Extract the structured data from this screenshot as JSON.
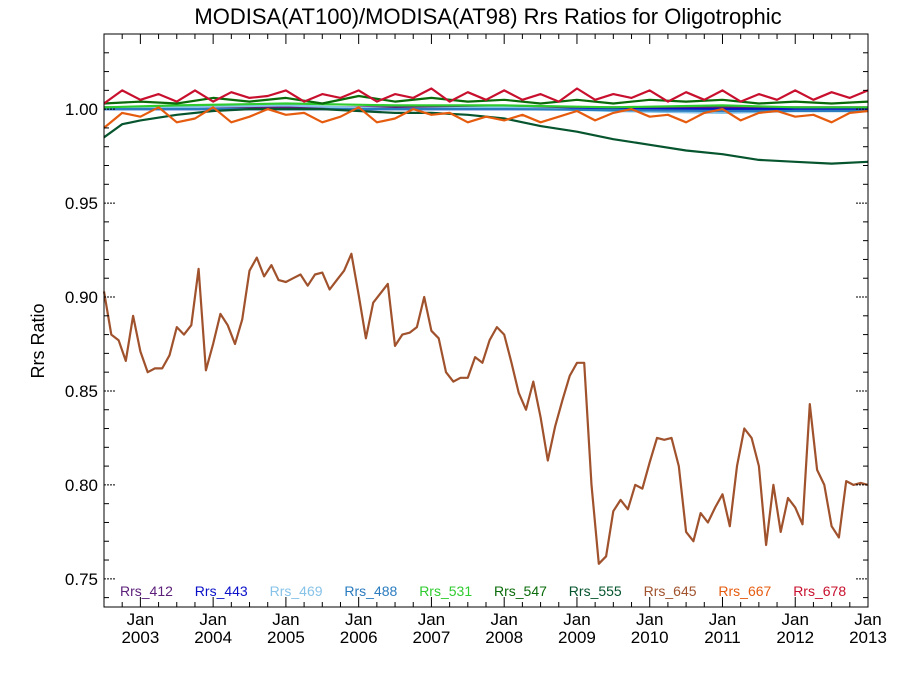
{
  "chart_data": {
    "type": "line",
    "title": "MODISA(AT100)/MODISA(AT98)  Rrs Ratios for Oligotrophic",
    "ylabel": "Rrs Ratio",
    "xlabel": "",
    "ylim": [
      0.735,
      1.04
    ],
    "yticks": [
      "0.75",
      "0.80",
      "0.85",
      "0.90",
      "0.95",
      "1.00"
    ],
    "ytick_values": [
      0.75,
      0.8,
      0.85,
      0.9,
      0.95,
      1.0
    ],
    "x_range": [
      2002.5,
      2013.0
    ],
    "xticks": [
      {
        "month": "Jan",
        "year": "2003",
        "x": 2003.0
      },
      {
        "month": "Jan",
        "year": "2004",
        "x": 2004.0
      },
      {
        "month": "Jan",
        "year": "2005",
        "x": 2005.0
      },
      {
        "month": "Jan",
        "year": "2006",
        "x": 2006.0
      },
      {
        "month": "Jan",
        "year": "2007",
        "x": 2007.0
      },
      {
        "month": "Jan",
        "year": "2008",
        "x": 2008.0
      },
      {
        "month": "Jan",
        "year": "2009",
        "x": 2009.0
      },
      {
        "month": "Jan",
        "year": "2010",
        "x": 2010.0
      },
      {
        "month": "Jan",
        "year": "2011",
        "x": 2011.0
      },
      {
        "month": "Jan",
        "year": "2012",
        "x": 2012.0
      },
      {
        "month": "Jan",
        "year": "2013",
        "x": 2013.0
      }
    ],
    "grid": false,
    "legend_placement": "bottom",
    "series": [
      {
        "name": "Rrs_412",
        "color": "#5b1f7a",
        "x": [
          2002.5,
          2005.0,
          2008.0,
          2011.0,
          2013.0
        ],
        "values": [
          1.001,
          1.001,
          1.001,
          1.001,
          1.001
        ]
      },
      {
        "name": "Rrs_443",
        "color": "#0a10c8",
        "x": [
          2002.5,
          2005.0,
          2008.0,
          2011.0,
          2013.0
        ],
        "values": [
          1.0,
          1.0,
          1.0,
          1.0,
          1.0
        ]
      },
      {
        "name": "Rrs_469",
        "color": "#87c3e8",
        "x": [
          2002.5,
          2003.5,
          2005.0,
          2006.5,
          2008.0,
          2009.5,
          2011.0,
          2012.0,
          2013.0
        ],
        "values": [
          1.0,
          1.001,
          1.002,
          1.0,
          1.001,
          0.999,
          0.998,
          0.999,
          0.999
        ]
      },
      {
        "name": "Rrs_488",
        "color": "#2a7cbf",
        "x": [
          2002.5,
          2005.0,
          2008.0,
          2011.0,
          2013.0
        ],
        "values": [
          1.0,
          1.0,
          1.0,
          0.999,
          0.999
        ]
      },
      {
        "name": "Rrs_531",
        "color": "#2fcc2f",
        "x": [
          2002.5,
          2003.5,
          2005.0,
          2006.5,
          2008.0,
          2009.5,
          2011.0,
          2012.0,
          2013.0
        ],
        "values": [
          1.001,
          1.002,
          1.003,
          1.002,
          1.002,
          1.001,
          1.002,
          1.001,
          1.001
        ]
      },
      {
        "name": "Rrs_547",
        "color": "#0a6b0a",
        "x": [
          2002.5,
          2003.0,
          2003.5,
          2004.0,
          2004.5,
          2005.0,
          2005.5,
          2006.0,
          2006.5,
          2007.0,
          2007.5,
          2008.0,
          2008.5,
          2009.0,
          2009.5,
          2010.0,
          2010.5,
          2011.0,
          2011.5,
          2012.0,
          2012.5,
          2013.0
        ],
        "values": [
          1.003,
          1.004,
          1.003,
          1.006,
          1.004,
          1.006,
          1.003,
          1.007,
          1.004,
          1.006,
          1.004,
          1.005,
          1.003,
          1.005,
          1.003,
          1.005,
          1.004,
          1.005,
          1.003,
          1.004,
          1.003,
          1.004
        ]
      },
      {
        "name": "Rrs_555",
        "color": "#06552e",
        "x": [
          2002.5,
          2002.75,
          2003.0,
          2003.5,
          2004.0,
          2004.5,
          2005.0,
          2005.5,
          2006.0,
          2006.5,
          2007.0,
          2007.5,
          2008.0,
          2008.5,
          2009.0,
          2009.5,
          2010.0,
          2010.5,
          2011.0,
          2011.5,
          2012.0,
          2012.5,
          2013.0
        ],
        "values": [
          0.985,
          0.992,
          0.994,
          0.997,
          0.999,
          1.0,
          1.0,
          1.0,
          0.999,
          0.998,
          0.998,
          0.997,
          0.995,
          0.991,
          0.988,
          0.984,
          0.981,
          0.978,
          0.976,
          0.973,
          0.972,
          0.971,
          0.972
        ]
      },
      {
        "name": "Rrs_645",
        "color": "#a0522d",
        "x": [
          2002.5,
          2002.6,
          2002.7,
          2002.8,
          2002.9,
          2003.0,
          2003.1,
          2003.2,
          2003.3,
          2003.4,
          2003.5,
          2003.6,
          2003.7,
          2003.8,
          2003.9,
          2004.0,
          2004.1,
          2004.2,
          2004.3,
          2004.4,
          2004.5,
          2004.6,
          2004.7,
          2004.8,
          2004.9,
          2005.0,
          2005.1,
          2005.2,
          2005.3,
          2005.4,
          2005.5,
          2005.6,
          2005.7,
          2005.8,
          2005.9,
          2006.0,
          2006.1,
          2006.2,
          2006.3,
          2006.4,
          2006.5,
          2006.6,
          2006.7,
          2006.8,
          2006.9,
          2007.0,
          2007.1,
          2007.2,
          2007.3,
          2007.4,
          2007.5,
          2007.6,
          2007.7,
          2007.8,
          2007.9,
          2008.0,
          2008.1,
          2008.2,
          2008.3,
          2008.4,
          2008.5,
          2008.6,
          2008.7,
          2008.8,
          2008.9,
          2009.0,
          2009.1,
          2009.2,
          2009.3,
          2009.4,
          2009.5,
          2009.6,
          2009.7,
          2009.8,
          2009.9,
          2010.0,
          2010.1,
          2010.2,
          2010.3,
          2010.4,
          2010.5,
          2010.6,
          2010.7,
          2010.8,
          2010.9,
          2011.0,
          2011.1,
          2011.2,
          2011.3,
          2011.4,
          2011.5,
          2011.6,
          2011.7,
          2011.8,
          2011.9,
          2012.0,
          2012.1,
          2012.2,
          2012.3,
          2012.4,
          2012.5,
          2012.6,
          2012.7,
          2012.8,
          2012.9,
          2013.0
        ],
        "values": [
          0.903,
          0.88,
          0.877,
          0.866,
          0.89,
          0.871,
          0.86,
          0.862,
          0.862,
          0.869,
          0.884,
          0.88,
          0.885,
          0.915,
          0.861,
          0.875,
          0.891,
          0.885,
          0.875,
          0.888,
          0.914,
          0.921,
          0.911,
          0.917,
          0.909,
          0.908,
          0.91,
          0.912,
          0.906,
          0.912,
          0.913,
          0.904,
          0.909,
          0.914,
          0.923,
          0.901,
          0.878,
          0.897,
          0.902,
          0.907,
          0.874,
          0.88,
          0.881,
          0.884,
          0.9,
          0.882,
          0.878,
          0.86,
          0.855,
          0.857,
          0.857,
          0.868,
          0.865,
          0.877,
          0.884,
          0.88,
          0.865,
          0.849,
          0.84,
          0.855,
          0.836,
          0.813,
          0.831,
          0.845,
          0.858,
          0.865,
          0.865,
          0.8,
          0.758,
          0.762,
          0.786,
          0.792,
          0.787,
          0.8,
          0.798,
          0.812,
          0.825,
          0.824,
          0.825,
          0.81,
          0.775,
          0.77,
          0.785,
          0.78,
          0.788,
          0.795,
          0.778,
          0.81,
          0.83,
          0.825,
          0.81,
          0.768,
          0.8,
          0.775,
          0.793,
          0.788,
          0.779,
          0.843,
          0.808,
          0.8,
          0.778,
          0.772,
          0.802,
          0.8,
          0.801,
          0.8
        ]
      },
      {
        "name": "Rrs_667",
        "color": "#e65c0f",
        "x": [
          2002.5,
          2002.75,
          2003.0,
          2003.25,
          2003.5,
          2003.75,
          2004.0,
          2004.25,
          2004.5,
          2004.75,
          2005.0,
          2005.25,
          2005.5,
          2005.75,
          2006.0,
          2006.25,
          2006.5,
          2006.75,
          2007.0,
          2007.25,
          2007.5,
          2007.75,
          2008.0,
          2008.25,
          2008.5,
          2008.75,
          2009.0,
          2009.25,
          2009.5,
          2009.75,
          2010.0,
          2010.25,
          2010.5,
          2010.75,
          2011.0,
          2011.25,
          2011.5,
          2011.75,
          2012.0,
          2012.25,
          2012.5,
          2012.75,
          2013.0
        ],
        "values": [
          0.99,
          0.998,
          0.996,
          1.001,
          0.993,
          0.995,
          1.001,
          0.993,
          0.996,
          1.0,
          0.997,
          0.998,
          0.993,
          0.996,
          1.001,
          0.993,
          0.995,
          1.0,
          0.997,
          0.998,
          0.993,
          0.996,
          0.994,
          0.997,
          0.993,
          0.996,
          0.999,
          0.994,
          0.998,
          1.0,
          0.996,
          0.997,
          0.993,
          0.998,
          1.0,
          0.994,
          0.998,
          0.999,
          0.996,
          0.997,
          0.993,
          0.998,
          0.999
        ]
      },
      {
        "name": "Rrs_678",
        "color": "#c8102e",
        "x": [
          2002.5,
          2002.75,
          2003.0,
          2003.25,
          2003.5,
          2003.75,
          2004.0,
          2004.25,
          2004.5,
          2004.75,
          2005.0,
          2005.25,
          2005.5,
          2005.75,
          2006.0,
          2006.25,
          2006.5,
          2006.75,
          2007.0,
          2007.25,
          2007.5,
          2007.75,
          2008.0,
          2008.25,
          2008.5,
          2008.75,
          2009.0,
          2009.25,
          2009.5,
          2009.75,
          2010.0,
          2010.25,
          2010.5,
          2010.75,
          2011.0,
          2011.25,
          2011.5,
          2011.75,
          2012.0,
          2012.25,
          2012.5,
          2012.75,
          2013.0
        ],
        "values": [
          1.003,
          1.01,
          1.005,
          1.008,
          1.004,
          1.01,
          1.004,
          1.009,
          1.006,
          1.007,
          1.01,
          1.004,
          1.008,
          1.006,
          1.01,
          1.004,
          1.008,
          1.006,
          1.011,
          1.004,
          1.009,
          1.005,
          1.01,
          1.005,
          1.008,
          1.004,
          1.011,
          1.005,
          1.008,
          1.006,
          1.01,
          1.004,
          1.009,
          1.005,
          1.01,
          1.004,
          1.008,
          1.005,
          1.01,
          1.005,
          1.009,
          1.006,
          1.01
        ]
      }
    ]
  }
}
